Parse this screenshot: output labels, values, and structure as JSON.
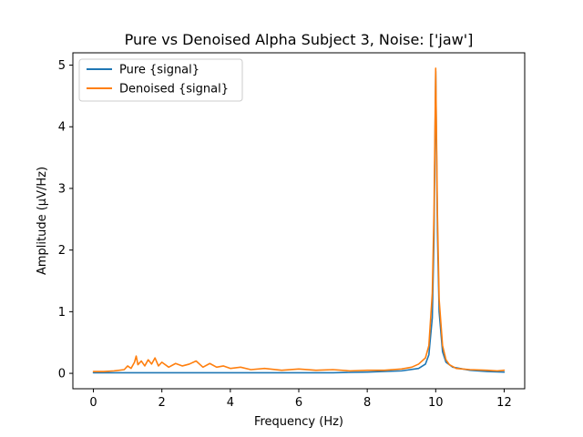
{
  "chart_data": {
    "type": "line",
    "title": "Pure vs Denoised Alpha Subject 3, Noise: ['jaw']",
    "xlabel": "Frequency (Hz)",
    "ylabel": "Amplitude (μV/Hz)",
    "xlim": [
      -0.6,
      12.6
    ],
    "ylim": [
      -0.25,
      5.2
    ],
    "xticks": [
      0,
      2,
      4,
      6,
      8,
      10,
      12
    ],
    "xtick_labels": [
      "0",
      "2",
      "4",
      "6",
      "8",
      "10",
      "12"
    ],
    "yticks": [
      0,
      1,
      2,
      3,
      4,
      5
    ],
    "ytick_labels": [
      "0",
      "1",
      "2",
      "3",
      "4",
      "5"
    ],
    "grid": false,
    "legend_position": "upper-left",
    "series": [
      {
        "name": "Pure {signal}",
        "color": "#1f77b4",
        "x": [
          0,
          1,
          2,
          3,
          4,
          5,
          6,
          7,
          8,
          9,
          9.5,
          9.7,
          9.8,
          9.9,
          9.95,
          10.0,
          10.05,
          10.1,
          10.2,
          10.3,
          10.5,
          11,
          11.5,
          12
        ],
        "y": [
          0.01,
          0.01,
          0.01,
          0.01,
          0.01,
          0.01,
          0.01,
          0.01,
          0.02,
          0.04,
          0.08,
          0.15,
          0.3,
          0.9,
          2.2,
          4.9,
          2.3,
          1.0,
          0.35,
          0.18,
          0.1,
          0.05,
          0.03,
          0.02
        ]
      },
      {
        "name": "Denoised {signal}",
        "color": "#ff7f0e",
        "x": [
          0,
          0.3,
          0.6,
          0.9,
          1.0,
          1.1,
          1.2,
          1.25,
          1.3,
          1.4,
          1.5,
          1.6,
          1.7,
          1.8,
          1.9,
          2.0,
          2.2,
          2.4,
          2.6,
          2.8,
          3.0,
          3.2,
          3.4,
          3.6,
          3.8,
          4.0,
          4.3,
          4.6,
          5.0,
          5.5,
          6.0,
          6.5,
          7.0,
          7.5,
          8.0,
          8.5,
          9.0,
          9.3,
          9.5,
          9.7,
          9.8,
          9.9,
          9.95,
          10.0,
          10.05,
          10.1,
          10.2,
          10.3,
          10.4,
          10.6,
          11.0,
          11.5,
          11.8,
          12.0
        ],
        "y": [
          0.03,
          0.03,
          0.04,
          0.06,
          0.12,
          0.08,
          0.18,
          0.28,
          0.14,
          0.2,
          0.12,
          0.22,
          0.15,
          0.25,
          0.12,
          0.18,
          0.1,
          0.16,
          0.12,
          0.15,
          0.2,
          0.1,
          0.16,
          0.1,
          0.12,
          0.08,
          0.1,
          0.06,
          0.08,
          0.05,
          0.07,
          0.05,
          0.06,
          0.04,
          0.05,
          0.05,
          0.07,
          0.1,
          0.15,
          0.25,
          0.45,
          1.3,
          2.6,
          4.95,
          2.6,
          1.2,
          0.45,
          0.22,
          0.14,
          0.08,
          0.06,
          0.05,
          0.04,
          0.05
        ]
      }
    ]
  }
}
